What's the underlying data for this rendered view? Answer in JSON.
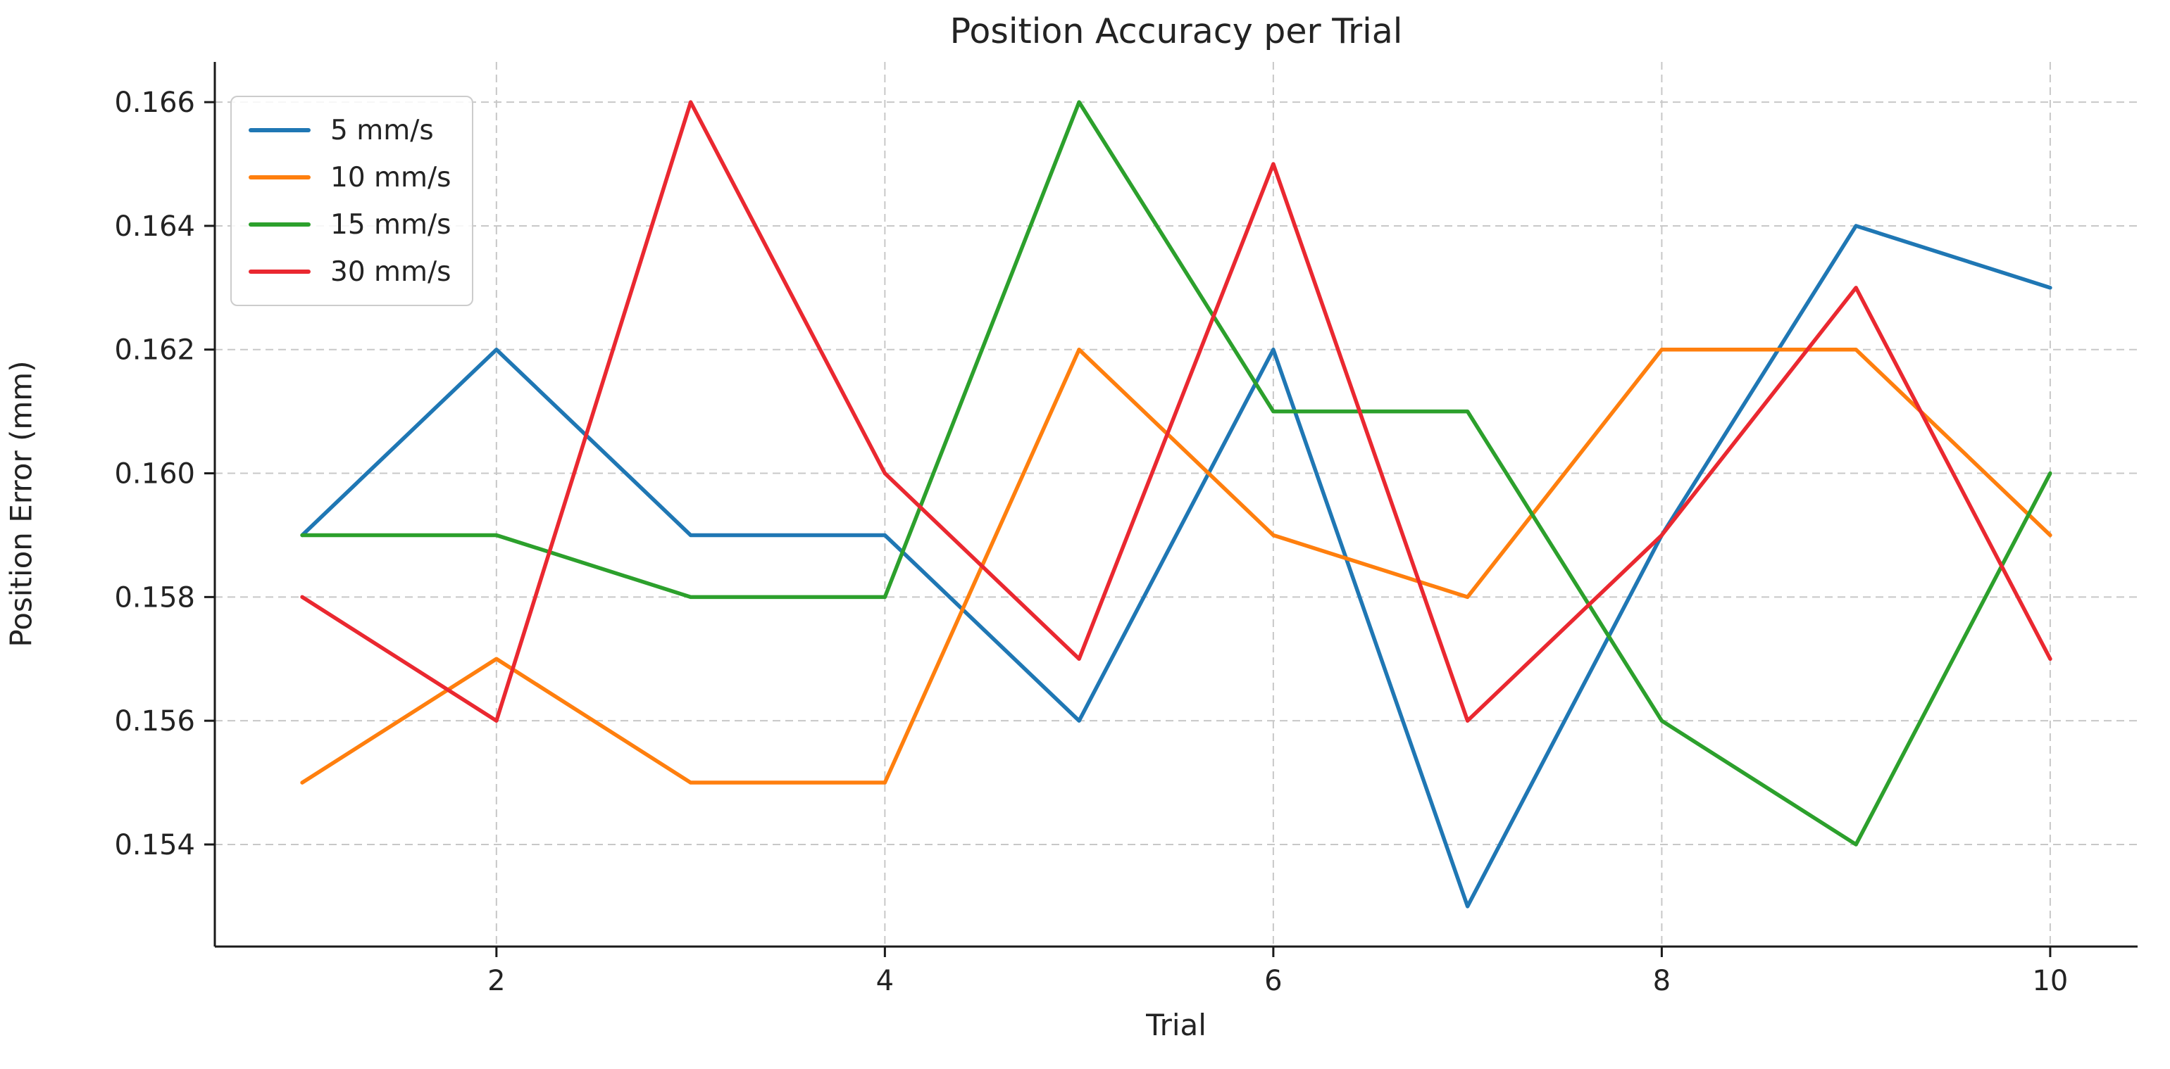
{
  "chart_data": {
    "type": "line",
    "title": "Position Accuracy per Trial",
    "xlabel": "Trial",
    "ylabel": "Position Error (mm)",
    "x": [
      1,
      2,
      3,
      4,
      5,
      6,
      7,
      8,
      9,
      10
    ],
    "series": [
      {
        "name": "5 mm/s",
        "color": "#1f77b4",
        "values": [
          0.159,
          0.162,
          0.159,
          0.159,
          0.156,
          0.162,
          0.153,
          0.159,
          0.164,
          0.163
        ]
      },
      {
        "name": "10 mm/s",
        "color": "#ff7f0e",
        "values": [
          0.155,
          0.157,
          0.155,
          0.155,
          0.162,
          0.159,
          0.158,
          0.162,
          0.162,
          0.159
        ]
      },
      {
        "name": "15 mm/s",
        "color": "#2ca02c",
        "values": [
          0.159,
          0.159,
          0.158,
          0.158,
          0.166,
          0.161,
          0.161,
          0.156,
          0.154,
          0.16
        ]
      },
      {
        "name": "30 mm/s",
        "color": "#ea2830",
        "values": [
          0.158,
          0.156,
          0.166,
          0.16,
          0.157,
          0.165,
          0.156,
          0.159,
          0.163,
          0.157
        ]
      }
    ],
    "xticks": [
      2,
      4,
      6,
      8,
      10
    ],
    "xtick_labels": [
      "2",
      "4",
      "6",
      "8",
      "10"
    ],
    "yticks": [
      0.154,
      0.156,
      0.158,
      0.16,
      0.162,
      0.164,
      0.166
    ],
    "ytick_labels": [
      "0.154",
      "0.156",
      "0.158",
      "0.160",
      "0.162",
      "0.164",
      "0.166"
    ],
    "xlim": [
      0.55,
      10.45
    ],
    "ylim": [
      0.15235,
      0.16665
    ],
    "grid": true,
    "legend_position": "upper-left",
    "grid_color": "#c8c8c8",
    "spine_color": "#1a1a1a",
    "text_color": "#232323"
  }
}
